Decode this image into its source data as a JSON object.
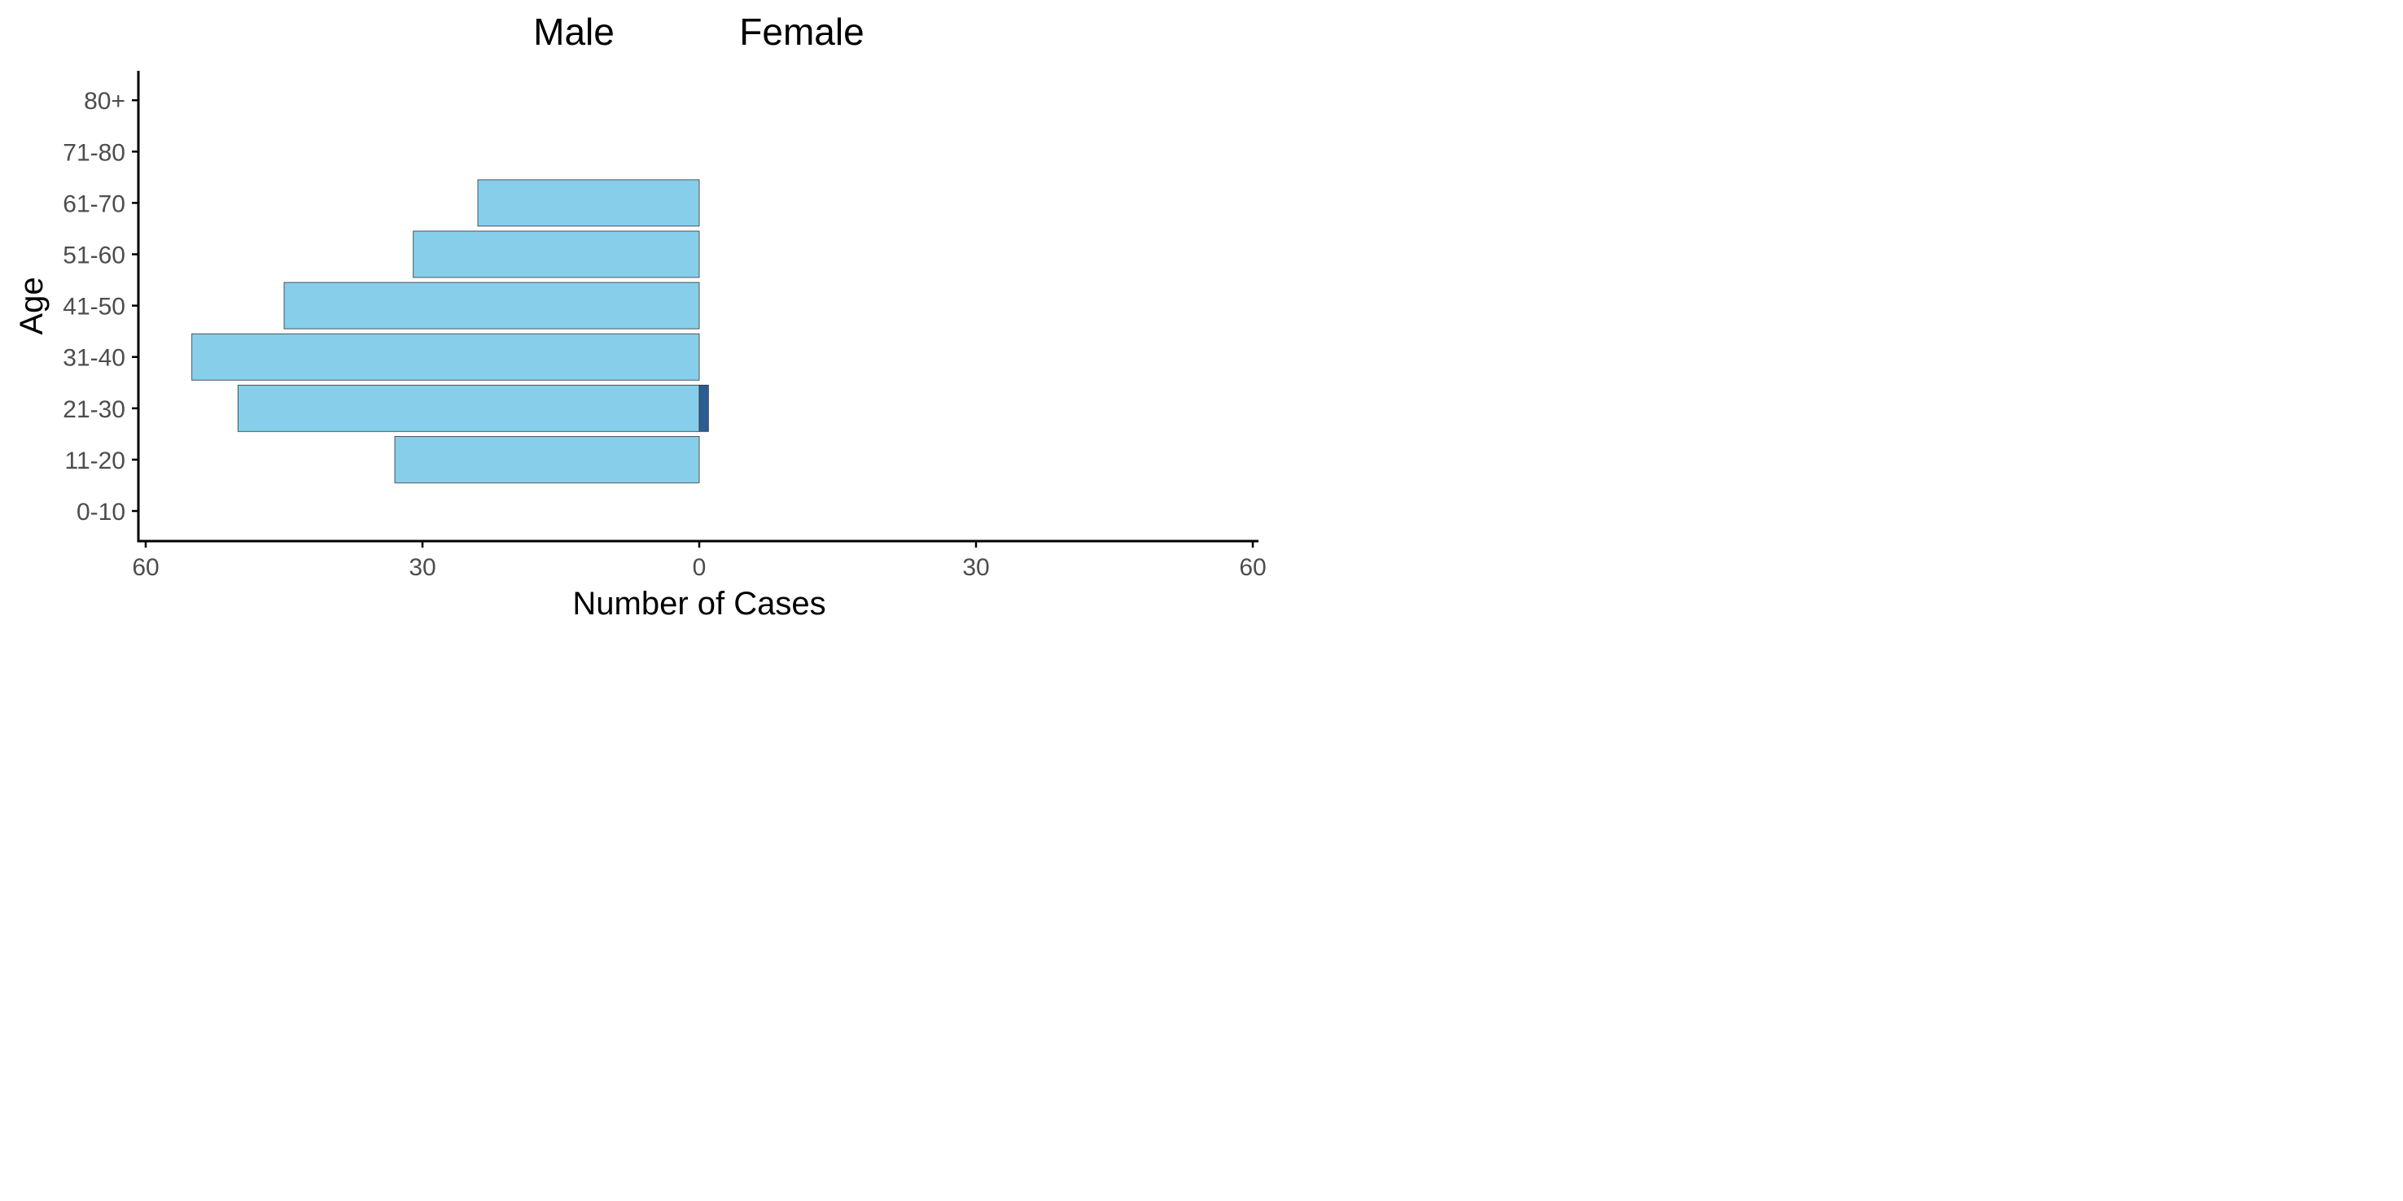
{
  "chart_data": {
    "type": "bar",
    "orientation": "horizontal",
    "style": "population-pyramid",
    "categories": [
      "0-10",
      "11-20",
      "21-30",
      "31-40",
      "41-50",
      "51-60",
      "61-70",
      "71-80",
      "80+"
    ],
    "series": [
      {
        "name": "Male",
        "values": [
          0,
          33,
          50,
          55,
          45,
          31,
          24,
          0,
          0
        ],
        "color": "#87CEEB"
      },
      {
        "name": "Female",
        "values": [
          0,
          0,
          1,
          0,
          0,
          0,
          0,
          0,
          0
        ],
        "color": "#2B5C94"
      }
    ],
    "headers": {
      "left": "Male",
      "right": "Female"
    },
    "xlabel": "Number of Cases",
    "ylabel": "Age",
    "xlim": [
      -60,
      60
    ],
    "xticks": [
      -60,
      -30,
      0,
      30,
      60
    ],
    "xtick_labels": [
      "60",
      "30",
      "0",
      "30",
      "60"
    ],
    "grid": false,
    "legend": "none"
  }
}
